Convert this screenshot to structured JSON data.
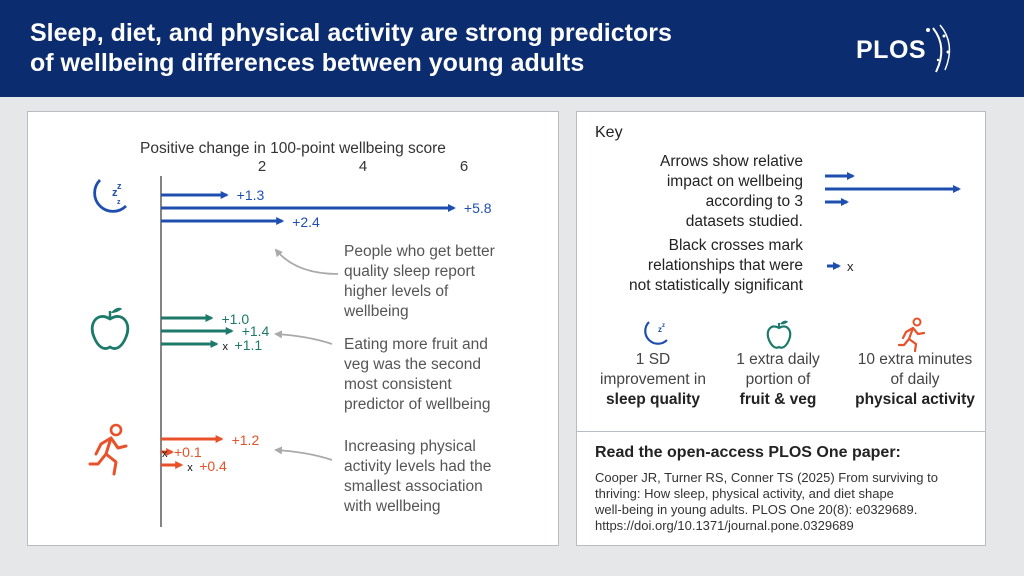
{
  "header": {
    "title": "Sleep, diet, and physical activity are strong predictors\nof wellbeing differences between young adults",
    "logo": "PLOS"
  },
  "colors": {
    "sleep": "#1f4fae",
    "diet": "#1d7a6a",
    "activity": "#e8512a",
    "header_bg": "#0b2c6e"
  },
  "chart_data": {
    "type": "bar",
    "title": "",
    "xlabel": "Positive change in 100-point wellbeing score",
    "xticks": [
      2,
      4,
      6
    ],
    "xlim": [
      0,
      6.3
    ],
    "grid": false,
    "series": [
      {
        "category": "sleep",
        "icon": "sleep-moon-icon",
        "values": [
          1.3,
          5.8,
          2.4
        ],
        "labels": [
          "+1.3",
          "+5.8",
          "+2.4"
        ],
        "significant": [
          true,
          true,
          true
        ]
      },
      {
        "category": "diet",
        "icon": "apple-icon",
        "values": [
          1.0,
          1.4,
          1.1
        ],
        "labels": [
          "+1.0",
          "+1.4",
          "+1.1"
        ],
        "significant": [
          true,
          true,
          false
        ]
      },
      {
        "category": "activity",
        "icon": "running-person-icon",
        "values": [
          1.2,
          0.1,
          0.4
        ],
        "labels": [
          "+1.2",
          "+0.1",
          "+0.4"
        ],
        "significant": [
          true,
          false,
          false
        ]
      }
    ],
    "cross_mark": "x"
  },
  "notes": {
    "sleep": [
      "People who get better",
      "quality sleep report",
      "higher levels of",
      "wellbeing"
    ],
    "diet": [
      "Eating more fruit and",
      "veg was the second",
      "most consistent",
      "predictor of wellbeing"
    ],
    "activity": [
      "Increasing physical",
      "activity levels had the",
      "smallest association",
      "with wellbeing"
    ]
  },
  "key": {
    "title": "Key",
    "arrows_text": [
      "Arrows show relative",
      "impact on wellbeing",
      "according to 3",
      "datasets studied."
    ],
    "crosses_text": [
      "Black crosses mark",
      "relationships that were",
      "not statistically significant"
    ],
    "cross_symbol": "x",
    "categories": [
      {
        "icon": "sleep-moon-icon",
        "line1": "1 SD",
        "line2": "improvement in",
        "bold": "sleep quality"
      },
      {
        "icon": "apple-icon",
        "line1": "1 extra daily",
        "line2": "portion of",
        "bold": "fruit & veg"
      },
      {
        "icon": "running-person-icon",
        "line1": "10 extra minutes",
        "line2": "of daily",
        "bold": "physical activity"
      }
    ]
  },
  "paper": {
    "heading": "Read the open-access PLOS One paper:",
    "citation_lines": [
      "Cooper JR, Turner RS, Conner TS (2025) From surviving to",
      "thriving: How sleep, physical activity, and diet shape",
      "well-being in young adults.  PLOS One 20(8): e0329689.",
      "https://doi.org/10.1371/journal.pone.0329689"
    ]
  }
}
